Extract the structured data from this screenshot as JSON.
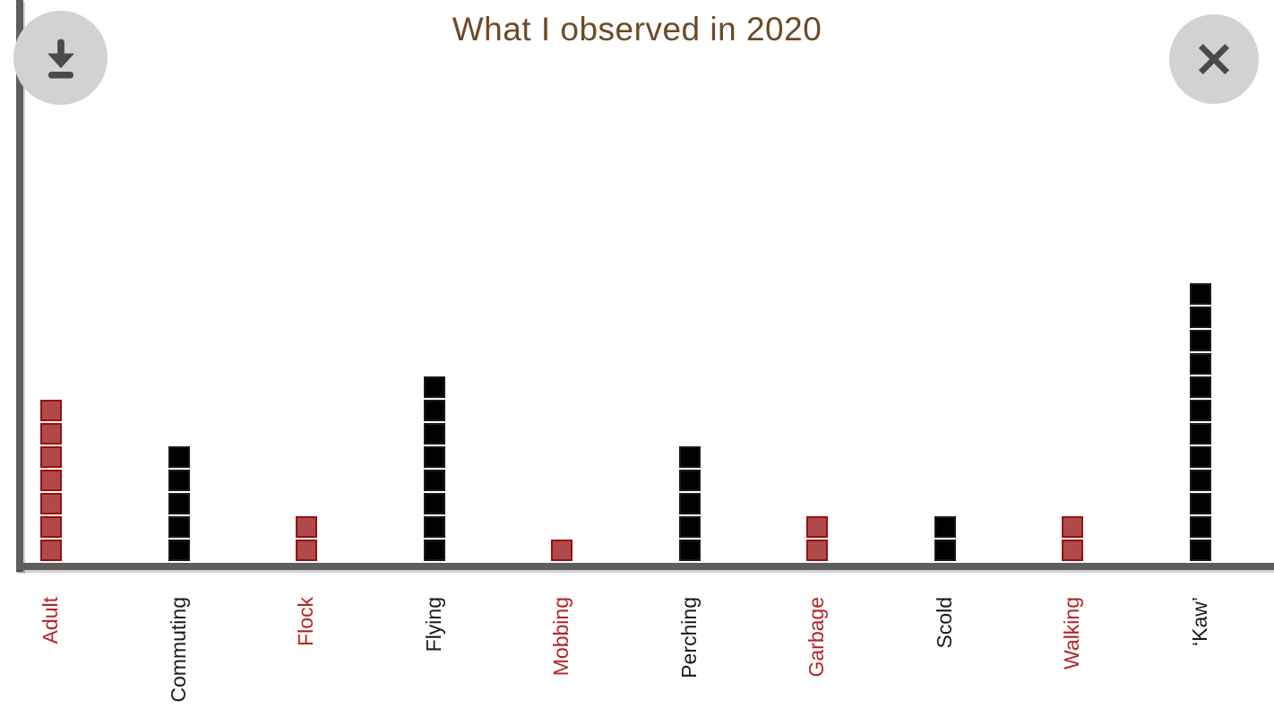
{
  "header": {
    "title": "What I observed in 2020"
  },
  "toolbar": {
    "download_icon": "download-icon",
    "close_icon": "close-icon"
  },
  "chart_data": {
    "type": "bar",
    "subtype": "unit-square-pictogram",
    "title": "What I observed in 2020",
    "xlabel": "",
    "ylabel": "",
    "ylim": [
      0,
      12
    ],
    "grid": false,
    "legend": null,
    "unit_value": 1,
    "categories": [
      "Adult",
      "Commuting",
      "Flock",
      "Flying",
      "Mobbing",
      "Perching",
      "Garbage",
      "Scold",
      "Walking",
      "‘Kaw’"
    ],
    "values": [
      7,
      5,
      2,
      8,
      1,
      5,
      2,
      2,
      2,
      12
    ],
    "bar_colors": [
      "red",
      "black",
      "red",
      "black",
      "red",
      "black",
      "red",
      "black",
      "red",
      "black"
    ]
  },
  "colors": {
    "background": "#ffffff",
    "title": "#6d4a26",
    "axis": "#5e5e5e",
    "button_bg": "#d2d2d2",
    "button_icon": "#4a4a4a",
    "red_fill": "#b04a4a",
    "red_border": "#990f0f",
    "black_fill": "#000000",
    "black_border": "#1a1a1a",
    "label_red": "#b32424",
    "label_black": "#1a1a1a"
  },
  "layout_values": {
    "first_column_center_x": 57,
    "column_step_x": 142.56,
    "square_pitch": 26
  }
}
